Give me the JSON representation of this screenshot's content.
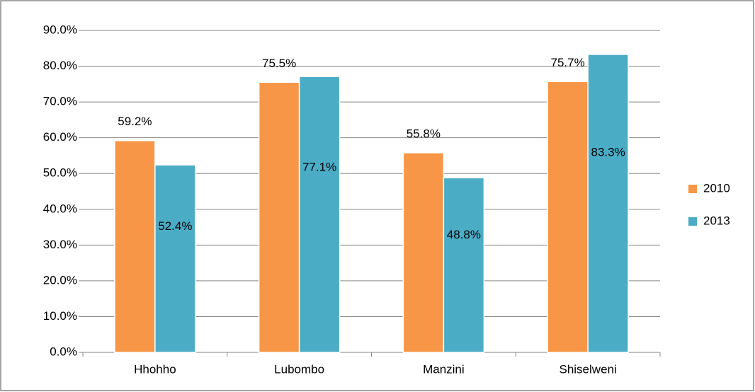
{
  "chart_data": {
    "type": "bar",
    "categories": [
      "Hhohho",
      "Lubombo",
      "Manzini",
      "Shiselweni"
    ],
    "series": [
      {
        "name": "2010",
        "color": "#f79646",
        "values": [
          59.2,
          75.5,
          55.8,
          75.7
        ],
        "value_labels": [
          "59.2%",
          "75.5%",
          "55.8%",
          "75.7%"
        ]
      },
      {
        "name": "2013",
        "color": "#4bacc6",
        "values": [
          52.4,
          77.1,
          48.8,
          83.3
        ],
        "value_labels": [
          "52.4%",
          "77.1%",
          "48.8%",
          "83.3%"
        ]
      }
    ],
    "ylim": [
      0,
      90
    ],
    "yticks": [
      {
        "value": 0,
        "label": "0.0%"
      },
      {
        "value": 10,
        "label": "10.0%"
      },
      {
        "value": 20,
        "label": "20.0%"
      },
      {
        "value": 30,
        "label": "30.0%"
      },
      {
        "value": 40,
        "label": "40.0%"
      },
      {
        "value": 50,
        "label": "50.0%"
      },
      {
        "value": 60,
        "label": "60.0%"
      },
      {
        "value": 70,
        "label": "70.0%"
      },
      {
        "value": 80,
        "label": "80.0%"
      },
      {
        "value": 90,
        "label": "90.0%"
      }
    ],
    "grid": true,
    "legend": "right"
  }
}
